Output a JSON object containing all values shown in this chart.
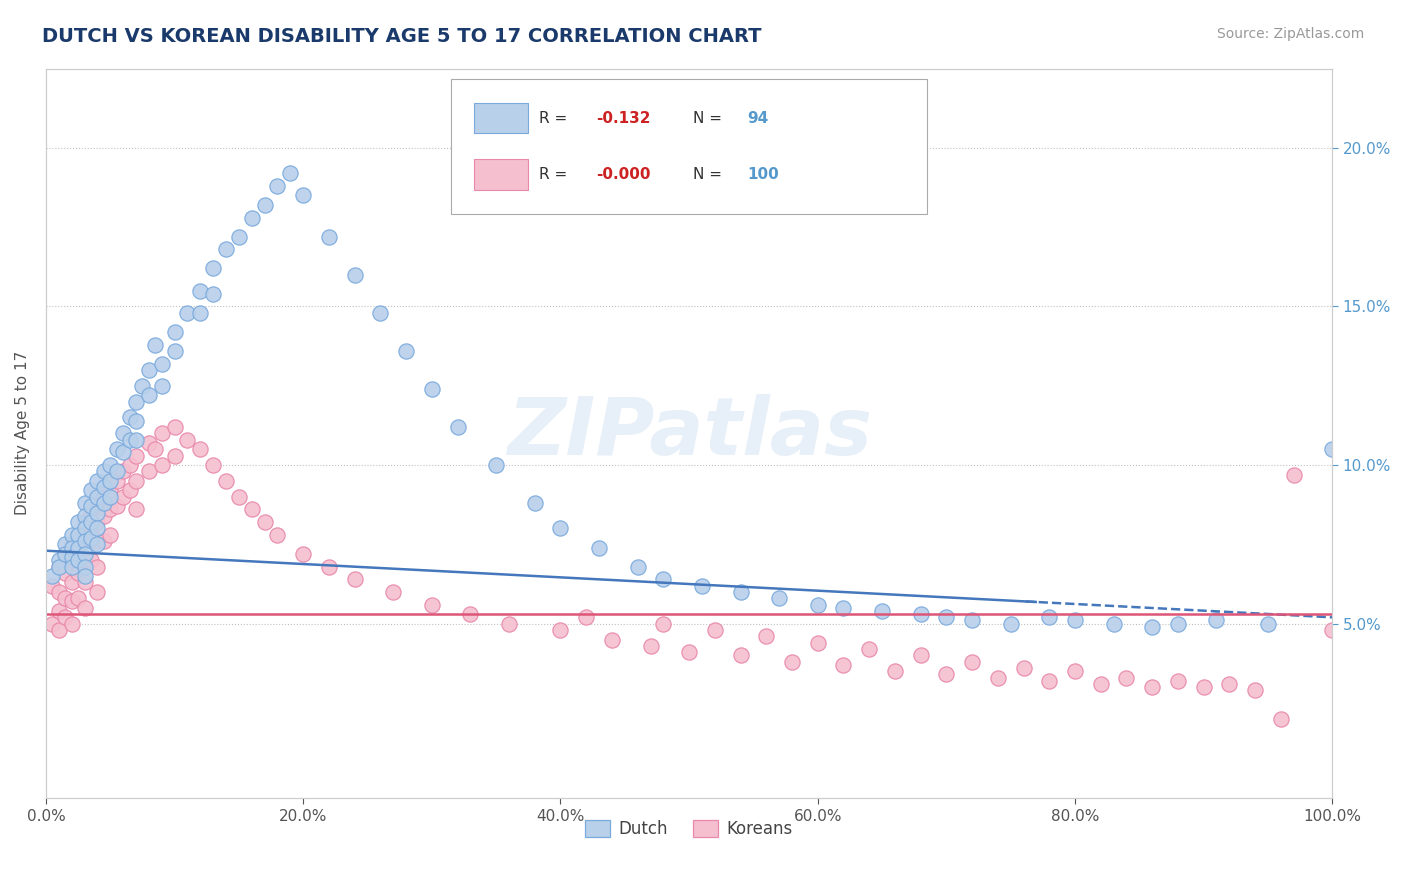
{
  "title": "DUTCH VS KOREAN DISABILITY AGE 5 TO 17 CORRELATION CHART",
  "source": "Source: ZipAtlas.com",
  "ylabel": "Disability Age 5 to 17",
  "xlim": [
    0,
    1.0
  ],
  "ylim": [
    -0.005,
    0.225
  ],
  "xticks": [
    0.0,
    0.2,
    0.4,
    0.6,
    0.8,
    1.0
  ],
  "xticklabels": [
    "0.0%",
    "20.0%",
    "40.0%",
    "60.0%",
    "80.0%",
    "100.0%"
  ],
  "yticks": [
    0.05,
    0.1,
    0.15,
    0.2
  ],
  "yticklabels": [
    "5.0%",
    "10.0%",
    "15.0%",
    "20.0%"
  ],
  "dutch_color": "#b8d0ea",
  "korean_color": "#f5bfd0",
  "dutch_edge": "#7aaadd",
  "korean_edge": "#e888aa",
  "trend_dutch_color": "#4477bb",
  "trend_korean_color": "#dd5577",
  "legend_dutch_label": "Dutch",
  "legend_korean_label": "Koreans",
  "R_dutch": -0.132,
  "N_dutch": 94,
  "R_korean": -0.0,
  "N_korean": 100,
  "watermark": "ZIPatlas",
  "background_color": "#ffffff",
  "grid_color": "#bbbbbb",
  "title_color": "#1a3a6b",
  "source_color": "#999999",
  "axis_color": "#cccccc",
  "scatter_size": 120,
  "dutch_trend_start_y": 0.073,
  "dutch_trend_end_y": 0.052,
  "korean_trend_y": 0.053,
  "dutch_x": [
    0.005,
    0.01,
    0.01,
    0.015,
    0.015,
    0.02,
    0.02,
    0.02,
    0.02,
    0.025,
    0.025,
    0.025,
    0.025,
    0.03,
    0.03,
    0.03,
    0.03,
    0.03,
    0.03,
    0.03,
    0.035,
    0.035,
    0.035,
    0.035,
    0.04,
    0.04,
    0.04,
    0.04,
    0.04,
    0.045,
    0.045,
    0.045,
    0.05,
    0.05,
    0.05,
    0.055,
    0.055,
    0.06,
    0.06,
    0.065,
    0.065,
    0.07,
    0.07,
    0.07,
    0.075,
    0.08,
    0.08,
    0.085,
    0.09,
    0.09,
    0.1,
    0.1,
    0.11,
    0.12,
    0.12,
    0.13,
    0.13,
    0.14,
    0.15,
    0.16,
    0.17,
    0.18,
    0.19,
    0.2,
    0.22,
    0.24,
    0.26,
    0.28,
    0.3,
    0.32,
    0.35,
    0.38,
    0.4,
    0.43,
    0.46,
    0.48,
    0.51,
    0.54,
    0.57,
    0.6,
    0.62,
    0.65,
    0.68,
    0.7,
    0.72,
    0.75,
    0.78,
    0.8,
    0.83,
    0.86,
    0.88,
    0.91,
    0.95,
    1.0
  ],
  "dutch_y": [
    0.065,
    0.07,
    0.068,
    0.075,
    0.072,
    0.078,
    0.074,
    0.071,
    0.068,
    0.082,
    0.078,
    0.074,
    0.07,
    0.088,
    0.084,
    0.08,
    0.076,
    0.072,
    0.068,
    0.065,
    0.092,
    0.087,
    0.082,
    0.077,
    0.095,
    0.09,
    0.085,
    0.08,
    0.075,
    0.098,
    0.093,
    0.088,
    0.1,
    0.095,
    0.09,
    0.105,
    0.098,
    0.11,
    0.104,
    0.115,
    0.108,
    0.12,
    0.114,
    0.108,
    0.125,
    0.13,
    0.122,
    0.138,
    0.132,
    0.125,
    0.142,
    0.136,
    0.148,
    0.155,
    0.148,
    0.162,
    0.154,
    0.168,
    0.172,
    0.178,
    0.182,
    0.188,
    0.192,
    0.185,
    0.172,
    0.16,
    0.148,
    0.136,
    0.124,
    0.112,
    0.1,
    0.088,
    0.08,
    0.074,
    0.068,
    0.064,
    0.062,
    0.06,
    0.058,
    0.056,
    0.055,
    0.054,
    0.053,
    0.052,
    0.051,
    0.05,
    0.052,
    0.051,
    0.05,
    0.049,
    0.05,
    0.051,
    0.05,
    0.105
  ],
  "korean_x": [
    0.005,
    0.005,
    0.01,
    0.01,
    0.01,
    0.01,
    0.015,
    0.015,
    0.015,
    0.015,
    0.02,
    0.02,
    0.02,
    0.02,
    0.02,
    0.025,
    0.025,
    0.025,
    0.025,
    0.03,
    0.03,
    0.03,
    0.03,
    0.03,
    0.035,
    0.035,
    0.035,
    0.04,
    0.04,
    0.04,
    0.04,
    0.04,
    0.045,
    0.045,
    0.045,
    0.05,
    0.05,
    0.05,
    0.055,
    0.055,
    0.06,
    0.06,
    0.065,
    0.065,
    0.07,
    0.07,
    0.07,
    0.08,
    0.08,
    0.085,
    0.09,
    0.09,
    0.1,
    0.1,
    0.11,
    0.12,
    0.13,
    0.14,
    0.15,
    0.16,
    0.17,
    0.18,
    0.2,
    0.22,
    0.24,
    0.27,
    0.3,
    0.33,
    0.36,
    0.4,
    0.44,
    0.47,
    0.5,
    0.54,
    0.58,
    0.62,
    0.66,
    0.7,
    0.74,
    0.78,
    0.82,
    0.86,
    0.9,
    0.94,
    0.97,
    1.0,
    0.42,
    0.48,
    0.52,
    0.56,
    0.6,
    0.64,
    0.68,
    0.72,
    0.76,
    0.8,
    0.84,
    0.88,
    0.92,
    0.96
  ],
  "korean_y": [
    0.062,
    0.05,
    0.068,
    0.06,
    0.054,
    0.048,
    0.072,
    0.066,
    0.058,
    0.052,
    0.075,
    0.07,
    0.063,
    0.057,
    0.05,
    0.078,
    0.072,
    0.066,
    0.058,
    0.082,
    0.076,
    0.07,
    0.063,
    0.055,
    0.085,
    0.078,
    0.07,
    0.088,
    0.082,
    0.076,
    0.068,
    0.06,
    0.09,
    0.084,
    0.076,
    0.092,
    0.086,
    0.078,
    0.095,
    0.087,
    0.098,
    0.09,
    0.1,
    0.092,
    0.103,
    0.095,
    0.086,
    0.107,
    0.098,
    0.105,
    0.11,
    0.1,
    0.112,
    0.103,
    0.108,
    0.105,
    0.1,
    0.095,
    0.09,
    0.086,
    0.082,
    0.078,
    0.072,
    0.068,
    0.064,
    0.06,
    0.056,
    0.053,
    0.05,
    0.048,
    0.045,
    0.043,
    0.041,
    0.04,
    0.038,
    0.037,
    0.035,
    0.034,
    0.033,
    0.032,
    0.031,
    0.03,
    0.03,
    0.029,
    0.097,
    0.048,
    0.052,
    0.05,
    0.048,
    0.046,
    0.044,
    0.042,
    0.04,
    0.038,
    0.036,
    0.035,
    0.033,
    0.032,
    0.031,
    0.02
  ]
}
